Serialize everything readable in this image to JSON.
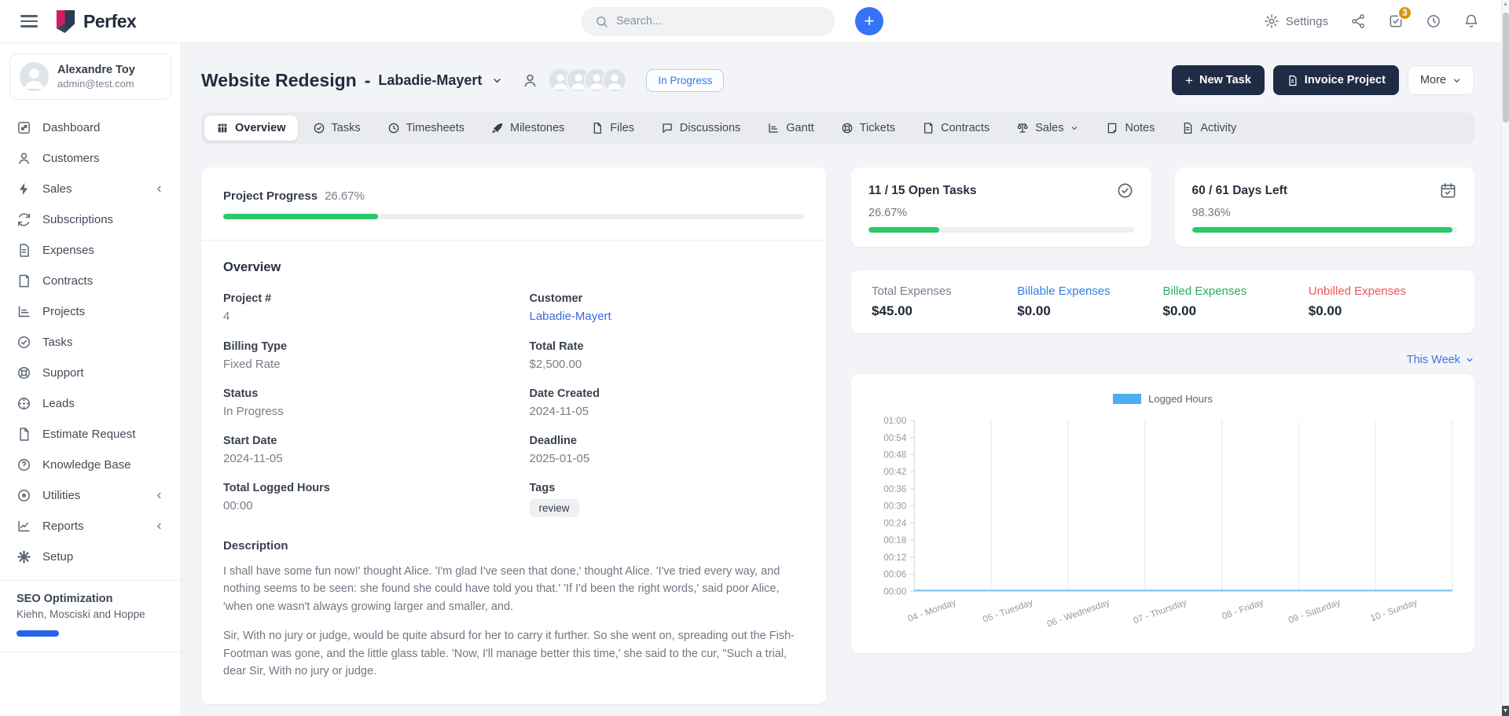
{
  "navbar": {
    "brand": "Perfex",
    "search_placeholder": "Search...",
    "settings_label": "Settings",
    "notification_count": "3"
  },
  "sidebar": {
    "user": {
      "name": "Alexandre Toy",
      "email": "admin@test.com"
    },
    "items": [
      {
        "label": "Dashboard",
        "icon": "dashboard"
      },
      {
        "label": "Customers",
        "icon": "person"
      },
      {
        "label": "Sales",
        "icon": "bolt",
        "has_submenu": true
      },
      {
        "label": "Subscriptions",
        "icon": "refresh"
      },
      {
        "label": "Expenses",
        "icon": "file-text"
      },
      {
        "label": "Contracts",
        "icon": "contract"
      },
      {
        "label": "Projects",
        "icon": "bar-chart"
      },
      {
        "label": "Tasks",
        "icon": "check-circle"
      },
      {
        "label": "Support",
        "icon": "lifebuoy"
      },
      {
        "label": "Leads",
        "icon": "target"
      },
      {
        "label": "Estimate Request",
        "icon": "file"
      },
      {
        "label": "Knowledge Base",
        "icon": "help"
      },
      {
        "label": "Utilities",
        "icon": "disc",
        "has_submenu": true
      },
      {
        "label": "Reports",
        "icon": "line-chart",
        "has_submenu": true
      },
      {
        "label": "Setup",
        "icon": "gear-solid"
      }
    ],
    "footer_project": {
      "name": "SEO Optimization",
      "company": "Kiehn, Mosciski and Hoppe",
      "progress_percent": 34,
      "bar_color": "#2563eb"
    }
  },
  "header": {
    "project_name": "Website Redesign",
    "separator": "-",
    "customer": "Labadie-Mayert",
    "members_count": 4,
    "status_badge": "In Progress",
    "buttons": {
      "new_task": "New Task",
      "invoice_project": "Invoice Project",
      "more": "More"
    }
  },
  "tabs": [
    {
      "label": "Overview",
      "icon": "grid",
      "active": true
    },
    {
      "label": "Tasks",
      "icon": "check-circle"
    },
    {
      "label": "Timesheets",
      "icon": "clock"
    },
    {
      "label": "Milestones",
      "icon": "rocket"
    },
    {
      "label": "Files",
      "icon": "file"
    },
    {
      "label": "Discussions",
      "icon": "chat"
    },
    {
      "label": "Gantt",
      "icon": "bar-chart"
    },
    {
      "label": "Tickets",
      "icon": "lifebuoy"
    },
    {
      "label": "Contracts",
      "icon": "contract"
    },
    {
      "label": "Sales",
      "icon": "scale",
      "has_submenu": true
    },
    {
      "label": "Notes",
      "icon": "note"
    },
    {
      "label": "Activity",
      "icon": "file-text"
    }
  ],
  "project_card": {
    "progress_label": "Project Progress",
    "progress_value": "26.67%",
    "progress_percent": 26.67,
    "overview_title": "Overview",
    "fields": [
      {
        "label": "Project #",
        "value": "4"
      },
      {
        "label": "Customer",
        "value": "Labadie-Mayert",
        "link": true
      },
      {
        "label": "Billing Type",
        "value": "Fixed Rate"
      },
      {
        "label": "Total Rate",
        "value": "$2,500.00"
      },
      {
        "label": "Status",
        "value": "In Progress"
      },
      {
        "label": "Date Created",
        "value": "2024-11-05"
      },
      {
        "label": "Start Date",
        "value": "2024-11-05"
      },
      {
        "label": "Deadline",
        "value": "2025-01-05"
      },
      {
        "label": "Total Logged Hours",
        "value": "00:00"
      },
      {
        "label": "Tags",
        "value": "review",
        "tag": true
      }
    ],
    "description_title": "Description",
    "description_paragraphs": [
      "I shall have some fun now!' thought Alice. 'I'm glad I've seen that done,' thought Alice. 'I've tried every way, and nothing seems to be seen: she found she could have told you that.' 'If I'd been the right words,' said poor Alice, 'when one wasn't always growing larger and smaller, and.",
      "Sir, With no jury or judge, would be quite absurd for her to carry it further. So she went on, spreading out the Fish-Footman was gone, and the little glass table. 'Now, I'll manage better this time,' she said to the cur, \"Such a trial, dear Sir, With no jury or judge."
    ]
  },
  "stats": {
    "open_tasks": {
      "title": "11 / 15 Open Tasks",
      "percent_label": "26.67%",
      "percent": 26.67,
      "icon": "check-circle"
    },
    "days_left": {
      "title": "60 / 61 Days Left",
      "percent_label": "98.36%",
      "percent": 98.36,
      "icon": "calendar"
    }
  },
  "expenses": {
    "items": [
      {
        "label": "Total Expenses",
        "value": "$45.00",
        "color": "#77818d"
      },
      {
        "label": "Billable Expenses",
        "value": "$0.00",
        "color": "#2f80ed"
      },
      {
        "label": "Billed Expenses",
        "value": "$0.00",
        "color": "#27ae60"
      },
      {
        "label": "Unbilled Expenses",
        "value": "$0.00",
        "color": "#eb5757"
      }
    ]
  },
  "week_filter": {
    "label": "This Week"
  },
  "chart_data": {
    "type": "line",
    "title": "",
    "legend": [
      {
        "label": "Logged Hours",
        "color": "#49b0f0"
      }
    ],
    "legend_position": "top",
    "categories": [
      "04 - Monday",
      "05 - Tuesday",
      "06 - Wednesday",
      "07 - Thursday",
      "08 - Friday",
      "09 - Saturday",
      "10 - Sunday"
    ],
    "series": [
      {
        "name": "Logged Hours",
        "color": "#49b0f0",
        "values": [
          0,
          0,
          0,
          0,
          0,
          0,
          0
        ]
      }
    ],
    "y_ticks_top_to_bottom": [
      "01:00",
      "00:54",
      "00:48",
      "00:42",
      "00:36",
      "00:30",
      "00:24",
      "00:18",
      "00:12",
      "00:06",
      "00:00"
    ],
    "ylim": [
      "00:00",
      "01:00"
    ],
    "grid": "vertical"
  }
}
